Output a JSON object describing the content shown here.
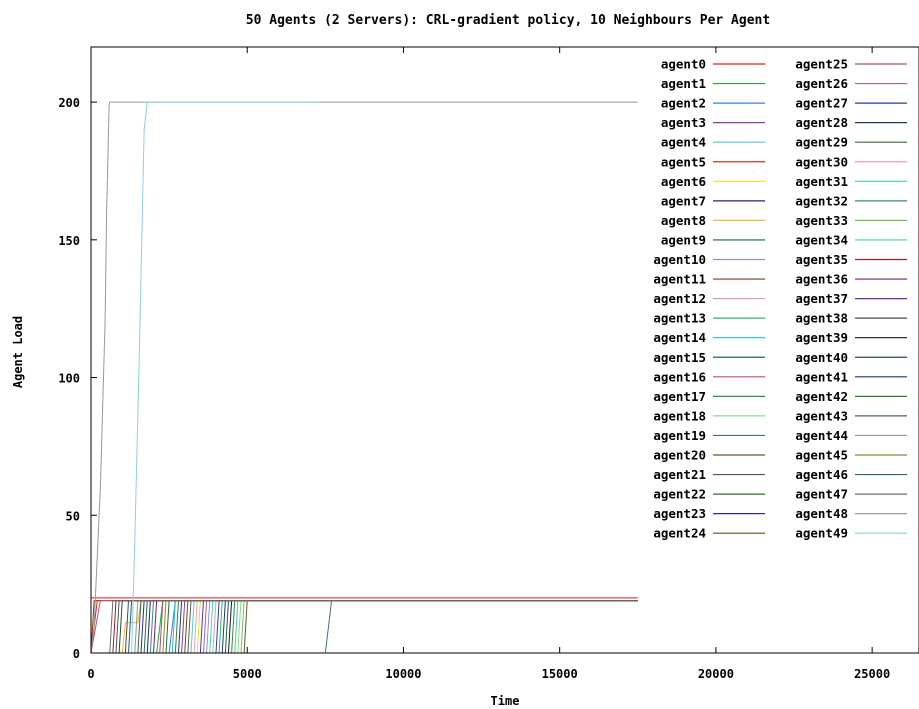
{
  "chart_data": {
    "type": "line",
    "title": "50 Agents (2 Servers): CRL-gradient policy, 10 Neighbours Per Agent",
    "xlabel": "Time",
    "ylabel": "Agent Load",
    "xlim": [
      0,
      26500
    ],
    "ylim": [
      0,
      220
    ],
    "xticks": [
      0,
      5000,
      10000,
      15000,
      20000,
      25000
    ],
    "yticks": [
      0,
      50,
      100,
      150,
      200
    ],
    "xtick_labels": [
      "0",
      "5000",
      "10000",
      "15000",
      "20000",
      "25000"
    ],
    "ytick_labels": [
      "0",
      "50",
      "100",
      "150",
      "200"
    ],
    "grid": false,
    "legend_position": "top-right",
    "series": [
      {
        "name": "agent0",
        "color": "#e41a1c",
        "points": [
          [
            0,
            20
          ],
          [
            1300,
            20
          ],
          [
            17500,
            20
          ]
        ]
      },
      {
        "name": "agent1",
        "color": "#1dac35",
        "points": [
          [
            0,
            0
          ],
          [
            2100,
            0
          ],
          [
            2300,
            19
          ],
          [
            17500,
            19
          ]
        ]
      },
      {
        "name": "agent2",
        "color": "#3c7fd6",
        "points": [
          [
            0,
            0
          ],
          [
            2500,
            0
          ],
          [
            2700,
            19
          ],
          [
            17500,
            19
          ]
        ]
      },
      {
        "name": "agent3",
        "color": "#8e3a9e",
        "points": [
          [
            0,
            0
          ],
          [
            2900,
            0
          ],
          [
            3000,
            19
          ],
          [
            17500,
            19
          ]
        ]
      },
      {
        "name": "agent4",
        "color": "#58c7d6",
        "points": [
          [
            0,
            0
          ],
          [
            3200,
            0
          ],
          [
            3300,
            19
          ],
          [
            17500,
            19
          ]
        ]
      },
      {
        "name": "agent5",
        "color": "#c9341b",
        "points": [
          [
            0,
            0
          ],
          [
            200,
            19
          ],
          [
            17500,
            19
          ]
        ]
      },
      {
        "name": "agent6",
        "color": "#e8e026",
        "points": [
          [
            0,
            0
          ],
          [
            3400,
            0
          ],
          [
            3500,
            19
          ],
          [
            17500,
            19
          ]
        ]
      },
      {
        "name": "agent7",
        "color": "#20217d",
        "points": [
          [
            0,
            0
          ],
          [
            1800,
            0
          ],
          [
            1900,
            19
          ],
          [
            17500,
            19
          ]
        ]
      },
      {
        "name": "agent8",
        "color": "#f2b82f",
        "points": [
          [
            0,
            0
          ],
          [
            1000,
            0
          ],
          [
            1100,
            11
          ],
          [
            1500,
            11
          ],
          [
            1600,
            19
          ],
          [
            17500,
            19
          ]
        ]
      },
      {
        "name": "agent9",
        "color": "#0f6b3a",
        "points": [
          [
            0,
            0
          ],
          [
            4300,
            0
          ],
          [
            4400,
            19
          ],
          [
            17500,
            19
          ]
        ]
      },
      {
        "name": "agent10",
        "color": "#8f8fd6",
        "points": [
          [
            0,
            0
          ],
          [
            3700,
            0
          ],
          [
            3800,
            19
          ],
          [
            17500,
            19
          ]
        ]
      },
      {
        "name": "agent11",
        "color": "#8a3a12",
        "points": [
          [
            0,
            0
          ],
          [
            100,
            19
          ],
          [
            17500,
            19
          ]
        ]
      },
      {
        "name": "agent12",
        "color": "#d79ad9",
        "points": [
          [
            0,
            0
          ],
          [
            3900,
            0
          ],
          [
            4000,
            19
          ],
          [
            17500,
            19
          ]
        ]
      },
      {
        "name": "agent13",
        "color": "#2fb56a",
        "points": [
          [
            0,
            0
          ],
          [
            4100,
            0
          ],
          [
            4200,
            19
          ],
          [
            17500,
            19
          ]
        ]
      },
      {
        "name": "agent14",
        "color": "#1fbfd0",
        "points": [
          [
            0,
            0
          ],
          [
            2600,
            0
          ],
          [
            2700,
            19
          ],
          [
            17500,
            19
          ]
        ]
      },
      {
        "name": "agent15",
        "color": "#1e5e6e",
        "points": [
          [
            0,
            0
          ],
          [
            1200,
            0
          ],
          [
            1300,
            19
          ],
          [
            17500,
            19
          ]
        ]
      },
      {
        "name": "agent16",
        "color": "#c84a7a",
        "points": [
          [
            0,
            0
          ],
          [
            300,
            19
          ],
          [
            17500,
            19
          ]
        ]
      },
      {
        "name": "agent17",
        "color": "#2e8b4a",
        "points": [
          [
            0,
            0
          ],
          [
            4500,
            0
          ],
          [
            4600,
            19
          ],
          [
            17500,
            19
          ]
        ]
      },
      {
        "name": "agent18",
        "color": "#8cdc8c",
        "points": [
          [
            0,
            0
          ],
          [
            4700,
            0
          ],
          [
            4800,
            19
          ],
          [
            17500,
            19
          ]
        ]
      },
      {
        "name": "agent19",
        "color": "#3f6f8a",
        "points": [
          [
            0,
            0
          ],
          [
            7500,
            0
          ],
          [
            7700,
            19
          ],
          [
            17500,
            19
          ]
        ]
      },
      {
        "name": "agent20",
        "color": "#6b5a1e",
        "points": [
          [
            0,
            0
          ],
          [
            4900,
            0
          ],
          [
            5000,
            19
          ],
          [
            17500,
            19
          ]
        ]
      },
      {
        "name": "agent21",
        "color": "#555555",
        "points": [
          [
            0,
            0
          ],
          [
            800,
            0
          ],
          [
            900,
            19
          ],
          [
            17500,
            19
          ]
        ]
      },
      {
        "name": "agent22",
        "color": "#2d6b2d",
        "points": [
          [
            0,
            0
          ],
          [
            2400,
            0
          ],
          [
            2500,
            19
          ],
          [
            17500,
            19
          ]
        ]
      },
      {
        "name": "agent23",
        "color": "#2b2b9a",
        "points": [
          [
            0,
            0
          ],
          [
            1600,
            0
          ],
          [
            1700,
            19
          ],
          [
            17500,
            19
          ]
        ]
      },
      {
        "name": "agent24",
        "color": "#6e4a10",
        "points": [
          [
            0,
            0
          ],
          [
            3000,
            0
          ],
          [
            3100,
            19
          ],
          [
            17500,
            19
          ]
        ]
      },
      {
        "name": "agent25",
        "color": "#9a5a5a",
        "points": [
          [
            0,
            0
          ],
          [
            2200,
            0
          ],
          [
            2300,
            19
          ],
          [
            17500,
            19
          ]
        ]
      },
      {
        "name": "agent26",
        "color": "#9a6aa8",
        "points": [
          [
            0,
            0
          ],
          [
            3600,
            0
          ],
          [
            3700,
            19
          ],
          [
            17500,
            19
          ]
        ]
      },
      {
        "name": "agent27",
        "color": "#2a3a9a",
        "points": [
          [
            0,
            0
          ],
          [
            4000,
            0
          ],
          [
            4100,
            19
          ],
          [
            17500,
            19
          ]
        ]
      },
      {
        "name": "agent28",
        "color": "#1a3a6a",
        "points": [
          [
            0,
            0
          ],
          [
            2800,
            0
          ],
          [
            2900,
            19
          ],
          [
            17500,
            19
          ]
        ]
      },
      {
        "name": "agent29",
        "color": "#3a6a3a",
        "points": [
          [
            0,
            0
          ],
          [
            1500,
            0
          ],
          [
            1600,
            19
          ],
          [
            17500,
            19
          ]
        ]
      },
      {
        "name": "agent30",
        "color": "#f0a0b8",
        "points": [
          [
            0,
            0
          ],
          [
            3300,
            0
          ],
          [
            3400,
            19
          ],
          [
            17500,
            19
          ]
        ]
      },
      {
        "name": "agent31",
        "color": "#40d0a0",
        "points": [
          [
            0,
            0
          ],
          [
            4600,
            0
          ],
          [
            4700,
            19
          ],
          [
            17500,
            19
          ]
        ]
      },
      {
        "name": "agent32",
        "color": "#3a8a8a",
        "points": [
          [
            0,
            0
          ],
          [
            1900,
            0
          ],
          [
            2000,
            19
          ],
          [
            17500,
            19
          ]
        ]
      },
      {
        "name": "agent33",
        "color": "#7ac05a",
        "points": [
          [
            0,
            0
          ],
          [
            4800,
            0
          ],
          [
            4900,
            19
          ],
          [
            17500,
            19
          ]
        ]
      },
      {
        "name": "agent34",
        "color": "#40d8b0",
        "points": [
          [
            0,
            0
          ],
          [
            3800,
            0
          ],
          [
            3900,
            19
          ],
          [
            17500,
            19
          ]
        ]
      },
      {
        "name": "agent35",
        "color": "#a01a2a",
        "points": [
          [
            0,
            0
          ],
          [
            700,
            0
          ],
          [
            800,
            19
          ],
          [
            17500,
            19
          ]
        ]
      },
      {
        "name": "agent36",
        "color": "#7a1a7a",
        "points": [
          [
            0,
            0
          ],
          [
            2000,
            0
          ],
          [
            2100,
            19
          ],
          [
            17500,
            19
          ]
        ]
      },
      {
        "name": "agent37",
        "color": "#6a2aa0",
        "points": [
          [
            0,
            0
          ],
          [
            3500,
            0
          ],
          [
            3600,
            19
          ],
          [
            17500,
            19
          ]
        ]
      },
      {
        "name": "agent38",
        "color": "#4a4a4a",
        "points": [
          [
            0,
            0
          ],
          [
            1100,
            0
          ],
          [
            1200,
            19
          ],
          [
            17500,
            19
          ]
        ]
      },
      {
        "name": "agent39",
        "color": "#1a1a1a",
        "points": [
          [
            0,
            0
          ],
          [
            4400,
            0
          ],
          [
            4500,
            19
          ],
          [
            17500,
            19
          ]
        ]
      },
      {
        "name": "agent40",
        "color": "#2a4a3a",
        "points": [
          [
            0,
            0
          ],
          [
            900,
            0
          ],
          [
            1000,
            19
          ],
          [
            17500,
            19
          ]
        ]
      },
      {
        "name": "agent41",
        "color": "#1a3a7a",
        "points": [
          [
            0,
            0
          ],
          [
            4200,
            0
          ],
          [
            4300,
            19
          ],
          [
            17500,
            19
          ]
        ]
      },
      {
        "name": "agent42",
        "color": "#3a7a3a",
        "points": [
          [
            0,
            0
          ],
          [
            2700,
            0
          ],
          [
            2800,
            19
          ],
          [
            17500,
            19
          ]
        ]
      },
      {
        "name": "agent43",
        "color": "#4a6a4a",
        "points": [
          [
            0,
            0
          ],
          [
            3100,
            0
          ],
          [
            3200,
            19
          ],
          [
            17500,
            19
          ]
        ]
      },
      {
        "name": "agent44",
        "color": "#8a9a8a",
        "points": [
          [
            0,
            0
          ],
          [
            1400,
            0
          ],
          [
            1500,
            19
          ],
          [
            17500,
            19
          ]
        ]
      },
      {
        "name": "agent45",
        "color": "#8a8a3a",
        "points": [
          [
            0,
            0
          ],
          [
            2300,
            0
          ],
          [
            2400,
            19
          ],
          [
            17500,
            19
          ]
        ]
      },
      {
        "name": "agent46",
        "color": "#2a6a4a",
        "points": [
          [
            0,
            0
          ],
          [
            1700,
            0
          ],
          [
            1800,
            19
          ],
          [
            17500,
            19
          ]
        ]
      },
      {
        "name": "agent47",
        "color": "#6a6a6a",
        "points": [
          [
            0,
            0
          ],
          [
            600,
            0
          ],
          [
            700,
            19
          ],
          [
            17500,
            19
          ]
        ]
      },
      {
        "name": "agent48",
        "color": "#999999",
        "points": [
          [
            0,
            0
          ],
          [
            100,
            10
          ],
          [
            300,
            60
          ],
          [
            450,
            120
          ],
          [
            500,
            160
          ],
          [
            580,
            199
          ],
          [
            600,
            200
          ],
          [
            17500,
            200
          ]
        ]
      },
      {
        "name": "agent49",
        "color": "#8ecfe0",
        "points": [
          [
            0,
            0
          ],
          [
            1300,
            0
          ],
          [
            1400,
            40
          ],
          [
            1550,
            110
          ],
          [
            1700,
            190
          ],
          [
            1800,
            200
          ],
          [
            7300,
            200
          ]
        ]
      }
    ]
  }
}
